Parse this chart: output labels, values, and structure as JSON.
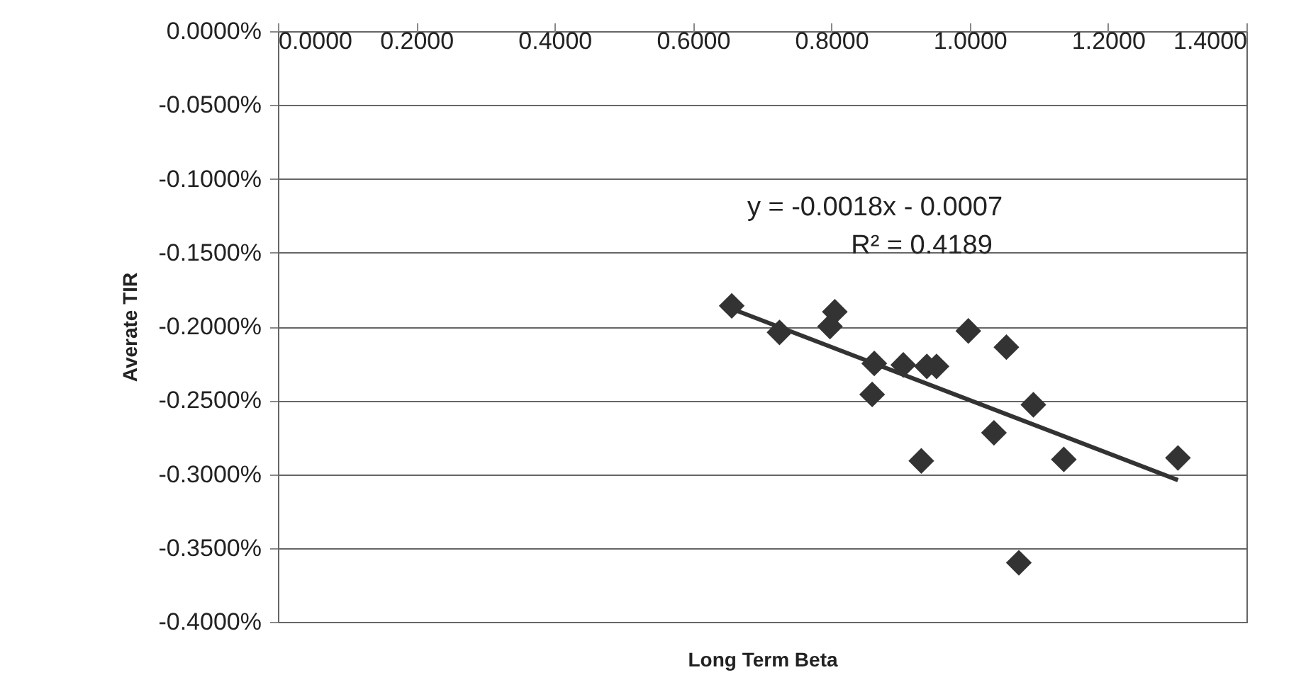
{
  "chart_data": {
    "type": "scatter",
    "xlabel": "Long Term Beta",
    "ylabel": "Averate TIR",
    "marker": "diamond",
    "grid": "y",
    "xlim": [
      0,
      1.4
    ],
    "ylim": [
      -0.4,
      0
    ],
    "xticks": [
      {
        "value": 0,
        "label": "0.0000"
      },
      {
        "value": 0.2,
        "label": "0.2000"
      },
      {
        "value": 0.4,
        "label": "0.4000"
      },
      {
        "value": 0.6,
        "label": "0.6000"
      },
      {
        "value": 0.8,
        "label": "0.8000"
      },
      {
        "value": 1.0,
        "label": "1.0000"
      },
      {
        "value": 1.2,
        "label": "1.2000"
      },
      {
        "value": 1.4,
        "label": "1.4000"
      }
    ],
    "yticks": [
      {
        "value": 0,
        "label": "0.0000%"
      },
      {
        "value": -0.05,
        "label": "-0.0500%"
      },
      {
        "value": -0.1,
        "label": "-0.1000%"
      },
      {
        "value": -0.15,
        "label": "-0.1500%"
      },
      {
        "value": -0.2,
        "label": "-0.2000%"
      },
      {
        "value": -0.25,
        "label": "-0.2500%"
      },
      {
        "value": -0.3,
        "label": "-0.3000%"
      },
      {
        "value": -0.35,
        "label": "-0.3500%"
      },
      {
        "value": -0.4,
        "label": "-0.4000%"
      }
    ],
    "series": [
      {
        "color": "#333333",
        "x": [
          0.656,
          0.725,
          0.805,
          0.798,
          0.862,
          0.859,
          0.904,
          0.938,
          0.952,
          0.93,
          0.998,
          1.053,
          1.092,
          1.035,
          1.136,
          1.301,
          1.071
        ],
        "values": [
          -0.186,
          -0.204,
          -0.19,
          -0.2,
          -0.225,
          -0.246,
          -0.226,
          -0.227,
          -0.227,
          -0.291,
          -0.203,
          -0.214,
          -0.253,
          -0.272,
          -0.29,
          -0.289,
          -0.36
        ]
      },
      {
        "type": "line",
        "marker": "none",
        "color": "#333333",
        "x": [
          0.656,
          1.301
        ],
        "values": [
          -0.188,
          -0.304
        ]
      }
    ],
    "annotations": [
      "y = -0.0018x - 0.0007",
      "R² = 0.4189"
    ]
  }
}
